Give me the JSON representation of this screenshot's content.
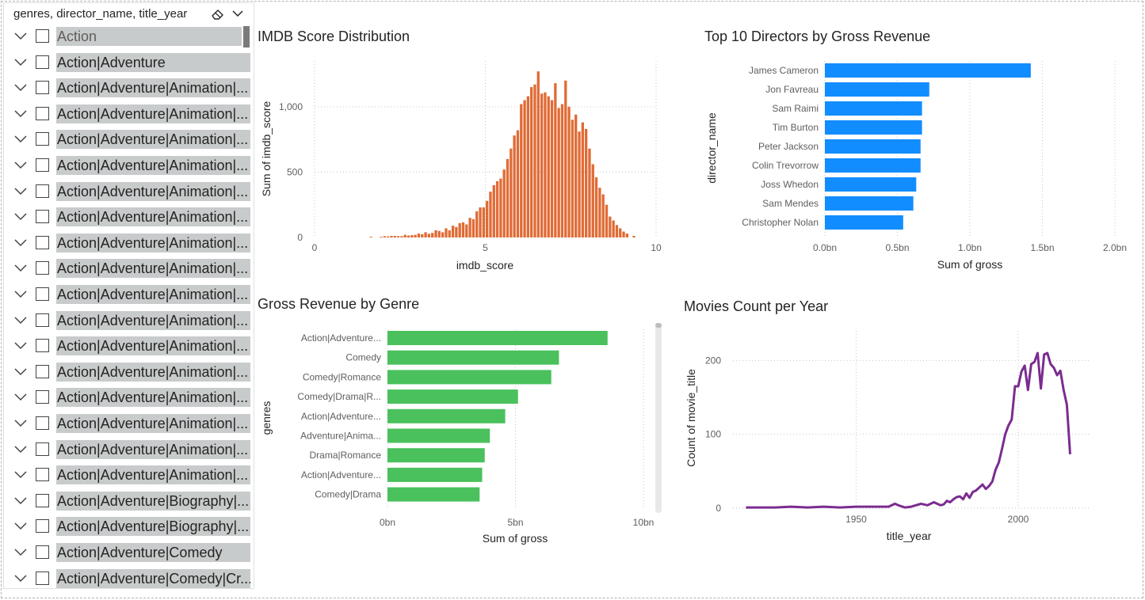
{
  "slicer": {
    "title": "genres, director_name, title_year",
    "icons": {
      "clear": "eraser-icon",
      "dropdown": "chevron-down-icon",
      "expand": "chevron-down-icon"
    },
    "items": [
      "Action",
      "Action|Adventure",
      "Action|Adventure|Animation|...",
      "Action|Adventure|Animation|...",
      "Action|Adventure|Animation|...",
      "Action|Adventure|Animation|...",
      "Action|Adventure|Animation|...",
      "Action|Adventure|Animation|...",
      "Action|Adventure|Animation|...",
      "Action|Adventure|Animation|...",
      "Action|Adventure|Animation|...",
      "Action|Adventure|Animation|...",
      "Action|Adventure|Animation|...",
      "Action|Adventure|Animation|...",
      "Action|Adventure|Animation|...",
      "Action|Adventure|Animation|...",
      "Action|Adventure|Animation|...",
      "Action|Adventure|Animation|...",
      "Action|Adventure|Biography|...",
      "Action|Adventure|Biography|...",
      "Action|Adventure|Comedy",
      "Action|Adventure|Comedy|Cr..."
    ]
  },
  "colors": {
    "histogram": "#e06b35",
    "directors": "#118dff",
    "genres": "#4ac15c",
    "line": "#7b2c8f"
  },
  "chart_data": [
    {
      "type": "bar",
      "title": "IMDB Score Distribution",
      "xlabel": "imdb_score",
      "ylabel": "Sum of imdb_score",
      "x_ticks": [
        "0",
        "5",
        "10"
      ],
      "y_ticks": [
        "0",
        "500",
        "1,000"
      ],
      "xlim": [
        0,
        10
      ],
      "ylim": [
        0,
        1350
      ],
      "bin_width": 0.1,
      "x": [
        1.6,
        1.9,
        2.0,
        2.1,
        2.2,
        2.3,
        2.4,
        2.5,
        2.6,
        2.7,
        2.8,
        2.9,
        3.0,
        3.1,
        3.2,
        3.3,
        3.4,
        3.5,
        3.6,
        3.7,
        3.8,
        3.9,
        4.0,
        4.1,
        4.2,
        4.3,
        4.4,
        4.5,
        4.6,
        4.7,
        4.8,
        4.9,
        5.0,
        5.1,
        5.2,
        5.3,
        5.4,
        5.5,
        5.6,
        5.7,
        5.8,
        5.9,
        6.0,
        6.1,
        6.2,
        6.3,
        6.4,
        6.5,
        6.6,
        6.7,
        6.8,
        6.9,
        7.0,
        7.1,
        7.2,
        7.3,
        7.4,
        7.5,
        7.6,
        7.7,
        7.8,
        7.9,
        8.0,
        8.1,
        8.2,
        8.3,
        8.4,
        8.5,
        8.6,
        8.7,
        8.8,
        8.9,
        9.0,
        9.1,
        9.3
      ],
      "values": [
        5,
        5,
        10,
        8,
        12,
        12,
        10,
        10,
        20,
        15,
        18,
        20,
        30,
        25,
        40,
        28,
        35,
        55,
        50,
        40,
        70,
        55,
        90,
        80,
        110,
        115,
        100,
        150,
        140,
        200,
        230,
        230,
        280,
        350,
        400,
        430,
        450,
        520,
        600,
        680,
        780,
        820,
        1020,
        1050,
        1080,
        1150,
        1170,
        1270,
        1100,
        1110,
        1080,
        1050,
        1180,
        990,
        1020,
        1200,
        1000,
        900,
        940,
        810,
        880,
        830,
        680,
        560,
        460,
        380,
        330,
        250,
        160,
        130,
        95,
        70,
        45,
        30,
        12
      ]
    },
    {
      "type": "bar",
      "orientation": "horizontal",
      "title": "Top 10 Directors by Gross Revenue",
      "xlabel": "Sum of gross",
      "ylabel": "director_name",
      "x_ticks": [
        "0.0bn",
        "0.5bn",
        "1.0bn",
        "1.5bn",
        "2.0bn"
      ],
      "xlim": [
        0,
        2.0
      ],
      "categories": [
        "James Cameron",
        "Jon Favreau",
        "Sam Raimi",
        "Tim Burton",
        "Peter Jackson",
        "Colin Trevorrow",
        "Joss Whedon",
        "Sam Mendes",
        "Christopher Nolan"
      ],
      "values": [
        1.42,
        0.72,
        0.67,
        0.67,
        0.66,
        0.66,
        0.63,
        0.61,
        0.54
      ]
    },
    {
      "type": "bar",
      "orientation": "horizontal",
      "title": "Gross Revenue by Genre",
      "xlabel": "Sum of gross",
      "ylabel": "genres",
      "x_ticks": [
        "0bn",
        "5bn",
        "10bn"
      ],
      "xlim": [
        0,
        10
      ],
      "categories": [
        "Action|Adventure...",
        "Comedy",
        "Comedy|Romance",
        "Comedy|Drama|R...",
        "Action|Adventure...",
        "Adventure|Anima...",
        "Drama|Romance",
        "Action|Adventure...",
        "Comedy|Drama"
      ],
      "values": [
        8.6,
        6.7,
        6.4,
        5.1,
        4.6,
        4.0,
        3.8,
        3.7,
        3.6
      ]
    },
    {
      "type": "line",
      "title": "Movies Count per Year",
      "xlabel": "title_year",
      "ylabel": "Count of movie_title",
      "x_ticks": [
        "1950",
        "2000"
      ],
      "y_ticks": [
        "0",
        "100",
        "200"
      ],
      "xlim": [
        1912,
        2022
      ],
      "ylim": [
        0,
        240
      ],
      "x": [
        1916,
        1920,
        1925,
        1930,
        1935,
        1940,
        1945,
        1950,
        1955,
        1960,
        1962,
        1963,
        1965,
        1967,
        1970,
        1972,
        1974,
        1976,
        1977,
        1978,
        1979,
        1980,
        1981,
        1982,
        1983,
        1984,
        1985,
        1986,
        1987,
        1988,
        1989,
        1990,
        1991,
        1992,
        1993,
        1994,
        1995,
        1996,
        1997,
        1998,
        1999,
        2000,
        2001,
        2002,
        2003,
        2004,
        2005,
        2006,
        2007,
        2008,
        2009,
        2010,
        2011,
        2012,
        2013,
        2014,
        2015,
        2016
      ],
      "values": [
        1,
        1,
        1,
        2,
        1,
        2,
        1,
        2,
        2,
        2,
        6,
        4,
        1,
        2,
        6,
        4,
        8,
        4,
        5,
        10,
        8,
        12,
        15,
        16,
        12,
        20,
        14,
        22,
        24,
        28,
        32,
        26,
        30,
        36,
        52,
        62,
        80,
        100,
        112,
        120,
        165,
        165,
        185,
        193,
        160,
        195,
        198,
        210,
        162,
        208,
        210,
        195,
        190,
        180,
        186,
        160,
        140,
        73
      ]
    }
  ]
}
